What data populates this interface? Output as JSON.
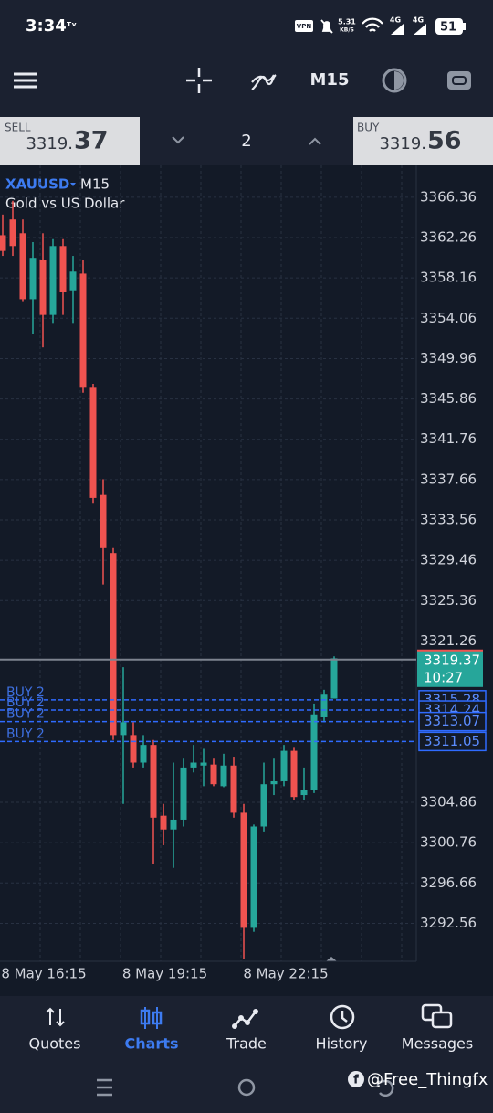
{
  "status_bar": {
    "time": "3:34",
    "vpn": "VPN",
    "speed": "5.31",
    "speed_unit": "KB/S",
    "net1": "4G",
    "net2": "4G",
    "battery": "51"
  },
  "toolbar": {
    "timeframe": "M15"
  },
  "trade_panel": {
    "sell": {
      "label": "SELL",
      "price_prefix": "3319.",
      "price_suffix": "37"
    },
    "volume": "2",
    "buy": {
      "label": "BUY",
      "price_prefix": "3319.",
      "price_suffix": "56"
    }
  },
  "chart": {
    "type": "candlestick",
    "symbol": "XAUUSD",
    "timeframe": "M15",
    "description": "Gold vs US Dollar",
    "ylim": [
      3288.7,
      3369.6
    ],
    "yticks": [
      3366.36,
      3362.26,
      3358.16,
      3354.06,
      3349.96,
      3345.86,
      3341.76,
      3337.66,
      3333.56,
      3329.46,
      3325.36,
      3321.26,
      3304.86,
      3300.76,
      3296.66,
      3292.56
    ],
    "x_labels": [
      "8 May 16:15",
      "8 May 19:15",
      "8 May 22:15"
    ],
    "grid": true,
    "up_color": "#26a69a",
    "down_color": "#ef5350",
    "candles": [
      {
        "o": 3362.5,
        "h": 3364.6,
        "l": 3360.4,
        "c": 3360.9
      },
      {
        "o": 3364.1,
        "h": 3366.0,
        "l": 3360.4,
        "c": 3361.4
      },
      {
        "o": 3362.7,
        "h": 3364.1,
        "l": 3355.8,
        "c": 3356.0
      },
      {
        "o": 3356.0,
        "h": 3361.8,
        "l": 3352.5,
        "c": 3360.2
      },
      {
        "o": 3360.0,
        "h": 3362.7,
        "l": 3351.1,
        "c": 3354.4
      },
      {
        "o": 3354.4,
        "h": 3362.1,
        "l": 3353.5,
        "c": 3361.4
      },
      {
        "o": 3361.4,
        "h": 3362.1,
        "l": 3354.4,
        "c": 3356.7
      },
      {
        "o": 3356.9,
        "h": 3360.4,
        "l": 3353.5,
        "c": 3358.8
      },
      {
        "o": 3358.6,
        "h": 3360.0,
        "l": 3346.5,
        "c": 3347.0
      },
      {
        "o": 3347.0,
        "h": 3347.4,
        "l": 3335.3,
        "c": 3335.8
      },
      {
        "o": 3336.1,
        "h": 3337.7,
        "l": 3327.0,
        "c": 3330.7
      },
      {
        "o": 3330.2,
        "h": 3330.7,
        "l": 3311.2,
        "c": 3311.7
      },
      {
        "o": 3311.7,
        "h": 3318.6,
        "l": 3304.7,
        "c": 3313.0
      },
      {
        "o": 3311.7,
        "h": 3313.0,
        "l": 3308.4,
        "c": 3308.9
      },
      {
        "o": 3308.9,
        "h": 3311.7,
        "l": 3308.4,
        "c": 3310.7
      },
      {
        "o": 3310.7,
        "h": 3311.2,
        "l": 3298.6,
        "c": 3303.3
      },
      {
        "o": 3303.5,
        "h": 3304.7,
        "l": 3300.5,
        "c": 3302.1
      },
      {
        "o": 3302.1,
        "h": 3308.9,
        "l": 3298.2,
        "c": 3303.1
      },
      {
        "o": 3303.1,
        "h": 3309.3,
        "l": 3302.4,
        "c": 3308.4
      },
      {
        "o": 3308.4,
        "h": 3310.7,
        "l": 3307.9,
        "c": 3308.9
      },
      {
        "o": 3308.6,
        "h": 3310.3,
        "l": 3306.5,
        "c": 3308.9
      },
      {
        "o": 3308.7,
        "h": 3309.3,
        "l": 3306.5,
        "c": 3306.7
      },
      {
        "o": 3306.5,
        "h": 3309.8,
        "l": 3306.4,
        "c": 3308.6
      },
      {
        "o": 3308.6,
        "h": 3309.5,
        "l": 3303.3,
        "c": 3303.8
      },
      {
        "o": 3303.8,
        "h": 3304.7,
        "l": 3288.9,
        "c": 3292.1
      },
      {
        "o": 3292.1,
        "h": 3302.6,
        "l": 3291.7,
        "c": 3302.4
      },
      {
        "o": 3302.4,
        "h": 3308.9,
        "l": 3301.9,
        "c": 3306.7
      },
      {
        "o": 3306.7,
        "h": 3309.3,
        "l": 3305.6,
        "c": 3307.0
      },
      {
        "o": 3307.0,
        "h": 3310.7,
        "l": 3306.5,
        "c": 3310.1
      },
      {
        "o": 3310.1,
        "h": 3310.4,
        "l": 3305.1,
        "c": 3305.4
      },
      {
        "o": 3305.6,
        "h": 3308.4,
        "l": 3305.1,
        "c": 3306.1
      },
      {
        "o": 3306.1,
        "h": 3314.9,
        "l": 3305.8,
        "c": 3313.8
      },
      {
        "o": 3313.5,
        "h": 3316.3,
        "l": 3313.0,
        "c": 3315.8
      },
      {
        "o": 3315.4,
        "h": 3319.7,
        "l": 3315.4,
        "c": 3319.5
      }
    ],
    "current_price": {
      "value": 3319.37,
      "timer": "10:27"
    },
    "orders": [
      {
        "label": "BUY 2",
        "price": 3315.28
      },
      {
        "label": "BUY 2",
        "price": 3314.24
      },
      {
        "label": "BUY 2",
        "price": 3313.07
      },
      {
        "label": "BUY 2",
        "price": 3311.05
      }
    ]
  },
  "bottom_nav": {
    "items": [
      "Quotes",
      "Charts",
      "Trade",
      "History",
      "Messages"
    ],
    "active": 1
  },
  "watermark": "@Free_Thingfx"
}
